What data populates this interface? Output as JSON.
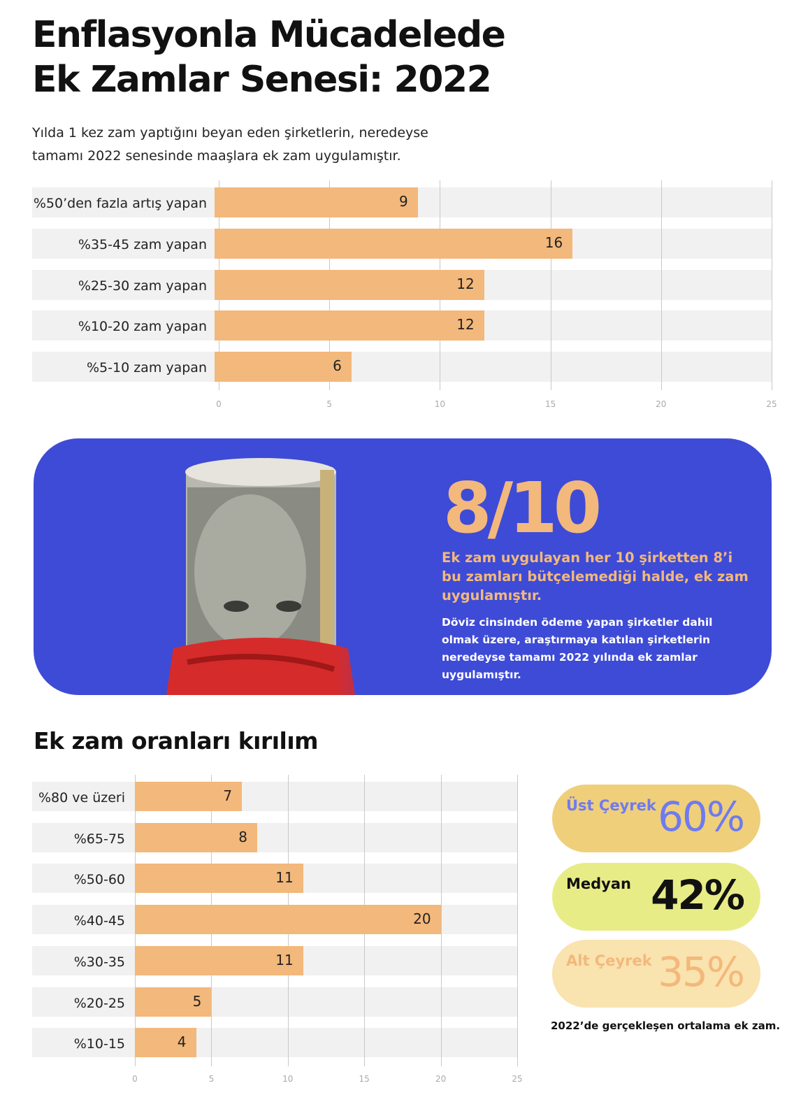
{
  "title": "Enflasyonla Mücadelede\nEk Zamlar Senesi: 2022",
  "subtitle": "Yılda 1 kez zam yaptığını beyan eden şirketlerin, neredeyse tamamı 2022 senesinde maaşlara ek zam uygulamıştır.",
  "chart_data": [
    {
      "type": "bar",
      "orientation": "horizontal",
      "categories": [
        "%50’den fazla artış yapan",
        "%35-45 zam yapan",
        "%25-30 zam yapan",
        "%10-20 zam yapan",
        "%5-10 zam yapan"
      ],
      "values": [
        9,
        16,
        12,
        12,
        6
      ],
      "xlim": [
        0,
        25
      ],
      "xticks": [
        "0",
        "5",
        "10",
        "15",
        "20",
        "25"
      ],
      "grid": true,
      "bar_color": "#f3b87b"
    },
    {
      "type": "bar",
      "orientation": "horizontal",
      "title": "Ek zam oranları kırılım",
      "categories": [
        "%80 ve üzeri",
        "%65-75",
        "%50-60",
        "%40-45",
        "%30-35",
        "%20-25",
        "%10-15"
      ],
      "values": [
        7,
        8,
        11,
        20,
        11,
        5,
        4
      ],
      "xlim": [
        0,
        25
      ],
      "xticks": [
        "0",
        "5",
        "10",
        "15",
        "20",
        "25"
      ],
      "grid": true,
      "bar_color": "#f3b87b"
    }
  ],
  "banner": {
    "stat": "8/10",
    "lead": "Ek zam uygulayan her 10 şirketten 8’i bu zamları bütçelemediği halde, ek zam uygulamıştır.",
    "body": "Döviz cinsinden ödeme yapan şirketler dahil olmak üzere, araştırmaya katılan şirketlerin neredeyse tamamı 2022 yılında ek zamlar uygulamıştır.",
    "background": "#3e4bd6",
    "image": "rolled-dollar-bill-with-red-scarf"
  },
  "stats": [
    {
      "label": "Üst Çeyrek",
      "value": "60%",
      "bg": "#efcf7a",
      "color": "#6f7af0"
    },
    {
      "label": "Medyan",
      "value": "42%",
      "bg": "#e8ec86",
      "color": "#111111"
    },
    {
      "label": "Alt Çeyrek",
      "value": "35%",
      "bg": "#f9e3af",
      "color": "#f3b87b"
    }
  ],
  "stats_note": "2022’de gerçekleşen ortalama ek zam."
}
